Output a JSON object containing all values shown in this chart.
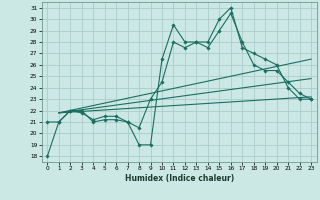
{
  "title": "",
  "xlabel": "Humidex (Indice chaleur)",
  "background_color": "#cce8e4",
  "grid_color": "#aacccc",
  "line_color": "#1a6e60",
  "xlim": [
    -0.5,
    23.5
  ],
  "ylim": [
    17.5,
    31.5
  ],
  "yticks": [
    18,
    19,
    20,
    21,
    22,
    23,
    24,
    25,
    26,
    27,
    28,
    29,
    30,
    31
  ],
  "xticks": [
    0,
    1,
    2,
    3,
    4,
    5,
    6,
    7,
    8,
    9,
    10,
    11,
    12,
    13,
    14,
    15,
    16,
    17,
    18,
    19,
    20,
    21,
    22,
    23
  ],
  "line1_x": [
    0,
    1,
    2,
    3,
    4,
    5,
    6,
    7,
    8,
    9,
    10,
    11,
    12,
    13,
    14,
    15,
    16,
    17,
    18,
    19,
    20,
    21,
    22,
    23
  ],
  "line1_y": [
    18,
    21,
    22,
    22,
    21,
    21.2,
    21.2,
    21,
    19,
    19,
    26.5,
    29.5,
    28,
    28,
    28,
    30,
    31,
    27.5,
    27,
    26.5,
    26,
    24,
    23,
    23
  ],
  "line2_x": [
    0,
    1,
    2,
    3,
    4,
    5,
    6,
    7,
    8,
    9,
    10,
    11,
    12,
    13,
    14,
    15,
    16,
    17,
    18,
    19,
    20,
    21,
    22,
    23
  ],
  "line2_y": [
    21,
    21,
    22,
    21.8,
    21.2,
    21.5,
    21.5,
    21,
    20.5,
    23,
    24.5,
    28,
    27.5,
    28,
    27.5,
    29,
    30.5,
    28,
    26,
    25.5,
    25.5,
    24.5,
    23.5,
    23
  ],
  "line3_x": [
    1,
    23
  ],
  "line3_y": [
    21.8,
    26.5
  ],
  "line4_x": [
    1,
    23
  ],
  "line4_y": [
    21.8,
    24.8
  ],
  "line5_x": [
    1,
    23
  ],
  "line5_y": [
    21.8,
    23.2
  ]
}
